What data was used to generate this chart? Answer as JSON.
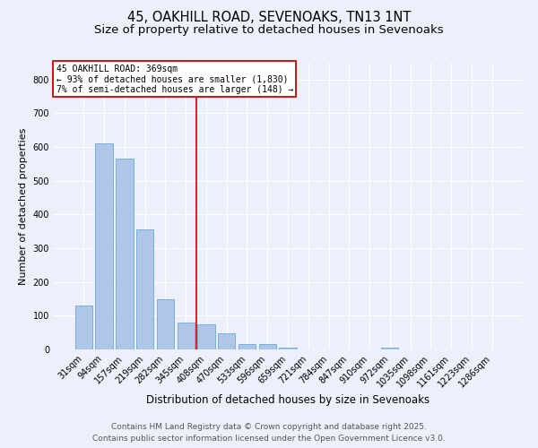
{
  "title1": "45, OAKHILL ROAD, SEVENOAKS, TN13 1NT",
  "title2": "Size of property relative to detached houses in Sevenoaks",
  "xlabel": "Distribution of detached houses by size in Sevenoaks",
  "ylabel": "Number of detached properties",
  "categories": [
    "31sqm",
    "94sqm",
    "157sqm",
    "219sqm",
    "282sqm",
    "345sqm",
    "408sqm",
    "470sqm",
    "533sqm",
    "596sqm",
    "659sqm",
    "721sqm",
    "784sqm",
    "847sqm",
    "910sqm",
    "972sqm",
    "1035sqm",
    "1098sqm",
    "1161sqm",
    "1223sqm",
    "1286sqm"
  ],
  "values": [
    130,
    610,
    565,
    355,
    150,
    80,
    75,
    48,
    15,
    15,
    5,
    0,
    0,
    0,
    0,
    4,
    0,
    0,
    0,
    0,
    0
  ],
  "bar_color": "#aec6e8",
  "bar_edge_color": "#6aaad4",
  "red_line_x": 5.5,
  "annotation_title": "45 OAKHILL ROAD: 369sqm",
  "annotation_line1": "← 93% of detached houses are smaller (1,830)",
  "annotation_line2": "7% of semi-detached houses are larger (148) →",
  "annotation_box_color": "#ffffff",
  "annotation_edge_color": "#cc0000",
  "footer1": "Contains HM Land Registry data © Crown copyright and database right 2025.",
  "footer2": "Contains public sector information licensed under the Open Government Licence v3.0.",
  "ylim": [
    0,
    850
  ],
  "yticks": [
    0,
    100,
    200,
    300,
    400,
    500,
    600,
    700,
    800
  ],
  "background_color": "#edf0fa",
  "grid_color": "#ffffff",
  "title1_fontsize": 10.5,
  "title2_fontsize": 9.5,
  "xlabel_fontsize": 8.5,
  "ylabel_fontsize": 8,
  "tick_fontsize": 7,
  "annot_fontsize": 7,
  "footer_fontsize": 6.5
}
